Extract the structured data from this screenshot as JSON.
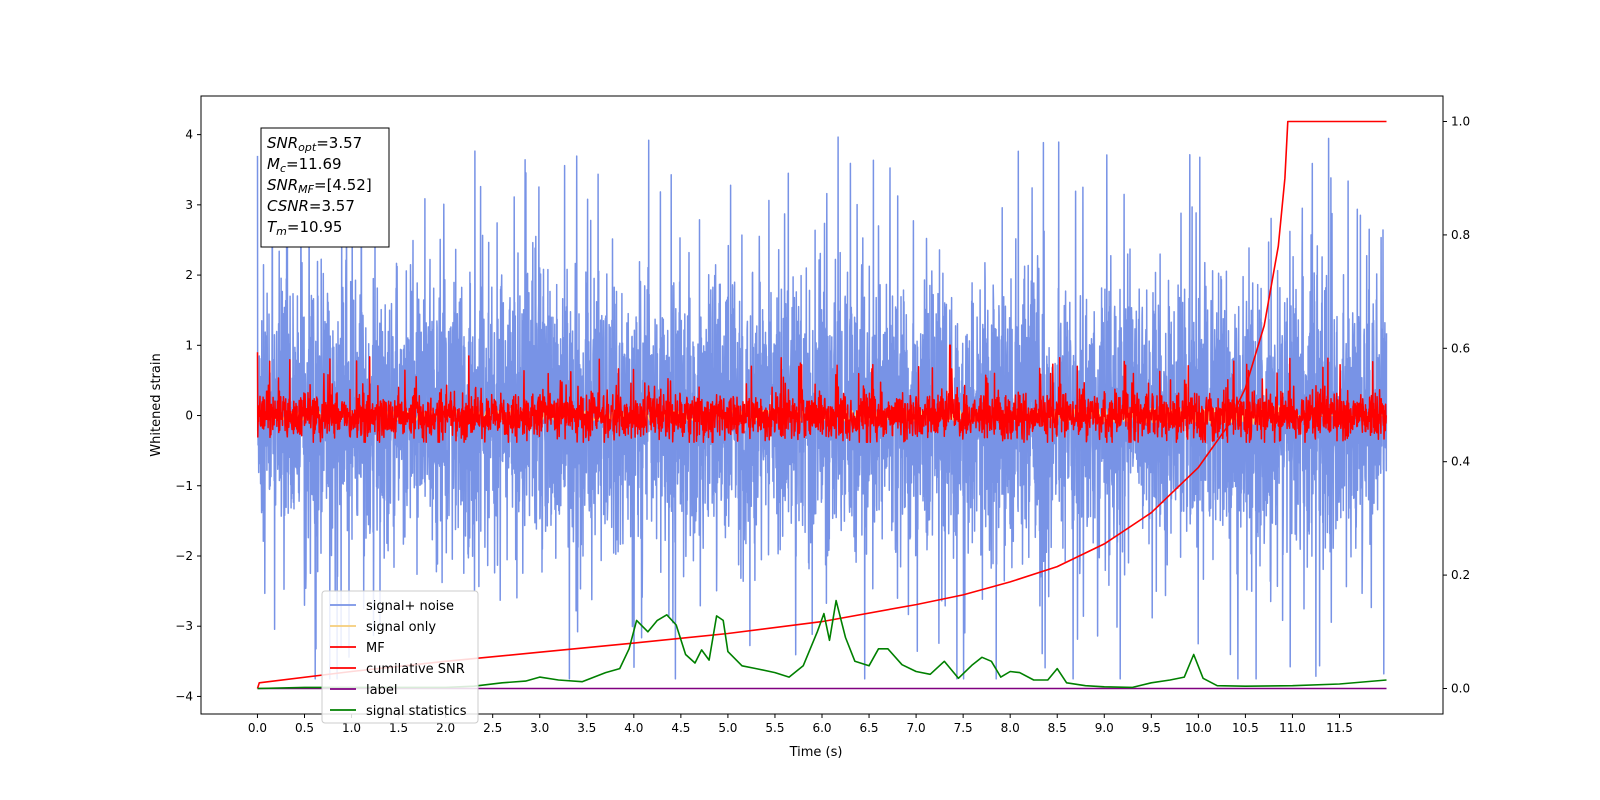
{
  "chart_data": {
    "type": "line",
    "title": "",
    "xlabel": "Time (s)",
    "ylabel": "Whitened strain",
    "y2label": "",
    "xlim": [
      -0.6,
      12.6
    ],
    "ylim": [
      -4.25,
      4.55
    ],
    "y2lim": [
      -0.045,
      1.045
    ],
    "x_ticks": [
      0.0,
      0.5,
      1.0,
      1.5,
      2.0,
      2.5,
      3.0,
      3.5,
      4.0,
      4.5,
      5.0,
      5.5,
      6.0,
      6.5,
      7.0,
      7.5,
      8.0,
      8.5,
      9.0,
      9.5,
      10.0,
      10.5,
      11.0,
      11.5
    ],
    "x_tick_labels": [
      "0.0",
      "0.5",
      "1.0",
      "1.5",
      "2.0",
      "2.5",
      "3.0",
      "3.5",
      "4.0",
      "4.5",
      "5.0",
      "5.5",
      "6.0",
      "6.5",
      "7.0",
      "7.5",
      "8.0",
      "8.5",
      "9.0",
      "9.5",
      "10.0",
      "10.5",
      "11.0",
      "11.5"
    ],
    "y_ticks": [
      4,
      3,
      2,
      1,
      0,
      -1,
      -2,
      -3,
      -4
    ],
    "y_tick_labels": [
      "4",
      "3",
      "2",
      "1",
      "0",
      "−1",
      "−2",
      "−3",
      "−4"
    ],
    "y2_ticks": [
      1.0,
      0.8,
      0.6,
      0.4,
      0.2,
      0.0
    ],
    "y2_tick_labels": [
      "1.0",
      "0.8",
      "0.6",
      "0.4",
      "0.2",
      "0.0"
    ],
    "grid": false,
    "legend_position": "lower-left",
    "signal_duration": 12.0,
    "series": [
      {
        "name": "signal+ noise",
        "color": "#7893e6",
        "axis": "left",
        "kind": "noise",
        "amplitude": 1.0,
        "spike_max": 4.1
      },
      {
        "name": "signal only",
        "color": "#f5cd7a",
        "axis": "left",
        "kind": "chirp",
        "amplitude": 0.15,
        "merger_time": 10.95
      },
      {
        "name": "MF",
        "color": "#ff0000",
        "axis": "left",
        "kind": "mf",
        "amplitude": 0.28,
        "points": [
          [
            0.0,
            0.9
          ],
          [
            7.36,
            1.0
          ]
        ]
      },
      {
        "name": "cumilative SNR",
        "color": "#ff0000",
        "axis": "right",
        "kind": "cumulative",
        "points": [
          [
            0.0,
            0.0
          ],
          [
            0.02,
            0.01
          ],
          [
            1.0,
            0.03
          ],
          [
            2.0,
            0.048
          ],
          [
            3.0,
            0.064
          ],
          [
            4.0,
            0.08
          ],
          [
            5.0,
            0.097
          ],
          [
            6.0,
            0.118
          ],
          [
            7.0,
            0.148
          ],
          [
            7.5,
            0.165
          ],
          [
            8.0,
            0.188
          ],
          [
            8.5,
            0.215
          ],
          [
            9.0,
            0.255
          ],
          [
            9.5,
            0.31
          ],
          [
            10.0,
            0.39
          ],
          [
            10.3,
            0.46
          ],
          [
            10.5,
            0.53
          ],
          [
            10.7,
            0.64
          ],
          [
            10.85,
            0.78
          ],
          [
            10.92,
            0.9
          ],
          [
            10.95,
            1.0
          ],
          [
            12.0,
            1.0
          ]
        ]
      },
      {
        "name": "label",
        "color": "#800080",
        "axis": "right",
        "kind": "flat",
        "value": 0.0
      },
      {
        "name": "signal statistics",
        "color": "#008000",
        "axis": "right",
        "points": [
          [
            0.0,
            0.0
          ],
          [
            0.5,
            0.002
          ],
          [
            1.0,
            0.002
          ],
          [
            1.5,
            0.002
          ],
          [
            2.0,
            0.002
          ],
          [
            2.3,
            0.004
          ],
          [
            2.6,
            0.01
          ],
          [
            2.85,
            0.013
          ],
          [
            3.0,
            0.02
          ],
          [
            3.2,
            0.015
          ],
          [
            3.45,
            0.012
          ],
          [
            3.7,
            0.028
          ],
          [
            3.85,
            0.035
          ],
          [
            3.95,
            0.07
          ],
          [
            4.03,
            0.12
          ],
          [
            4.15,
            0.1
          ],
          [
            4.25,
            0.12
          ],
          [
            4.35,
            0.13
          ],
          [
            4.45,
            0.112
          ],
          [
            4.55,
            0.06
          ],
          [
            4.65,
            0.045
          ],
          [
            4.72,
            0.068
          ],
          [
            4.8,
            0.05
          ],
          [
            4.88,
            0.128
          ],
          [
            4.95,
            0.12
          ],
          [
            5.0,
            0.065
          ],
          [
            5.15,
            0.04
          ],
          [
            5.3,
            0.035
          ],
          [
            5.5,
            0.028
          ],
          [
            5.65,
            0.02
          ],
          [
            5.8,
            0.04
          ],
          [
            5.95,
            0.1
          ],
          [
            6.02,
            0.132
          ],
          [
            6.08,
            0.085
          ],
          [
            6.15,
            0.155
          ],
          [
            6.25,
            0.09
          ],
          [
            6.35,
            0.048
          ],
          [
            6.5,
            0.04
          ],
          [
            6.6,
            0.07
          ],
          [
            6.7,
            0.07
          ],
          [
            6.85,
            0.042
          ],
          [
            7.0,
            0.03
          ],
          [
            7.15,
            0.025
          ],
          [
            7.3,
            0.048
          ],
          [
            7.45,
            0.018
          ],
          [
            7.6,
            0.042
          ],
          [
            7.7,
            0.055
          ],
          [
            7.8,
            0.048
          ],
          [
            7.9,
            0.02
          ],
          [
            8.0,
            0.03
          ],
          [
            8.1,
            0.028
          ],
          [
            8.25,
            0.015
          ],
          [
            8.4,
            0.015
          ],
          [
            8.5,
            0.035
          ],
          [
            8.6,
            0.01
          ],
          [
            8.8,
            0.005
          ],
          [
            9.0,
            0.003
          ],
          [
            9.3,
            0.002
          ],
          [
            9.5,
            0.01
          ],
          [
            9.7,
            0.015
          ],
          [
            9.85,
            0.02
          ],
          [
            9.95,
            0.06
          ],
          [
            10.05,
            0.018
          ],
          [
            10.2,
            0.005
          ],
          [
            10.5,
            0.004
          ],
          [
            11.0,
            0.005
          ],
          [
            11.5,
            0.008
          ],
          [
            12.0,
            0.015
          ]
        ]
      }
    ],
    "annotations": [
      {
        "base": "SNR",
        "sub": "opt",
        "value": "=3.57"
      },
      {
        "base": "M",
        "sub": "c",
        "value": "=11.69"
      },
      {
        "base": "SNR",
        "sub": "MF",
        "value": "=[4.52]"
      },
      {
        "base": "CSNR",
        "sub": "",
        "value": "=3.57"
      },
      {
        "base": "T",
        "sub": "m",
        "value": "=10.95"
      }
    ]
  }
}
